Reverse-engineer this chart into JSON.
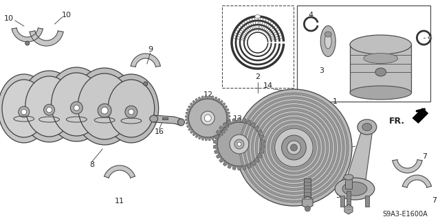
{
  "bg_color": "#ffffff",
  "diagram_code": "S9A3-E1600A",
  "fr_label": "FR.",
  "font_size": 8,
  "label_color": "#222222",
  "line_color": "#333333",
  "part_color": "#aaaaaa",
  "dark_color": "#444444"
}
